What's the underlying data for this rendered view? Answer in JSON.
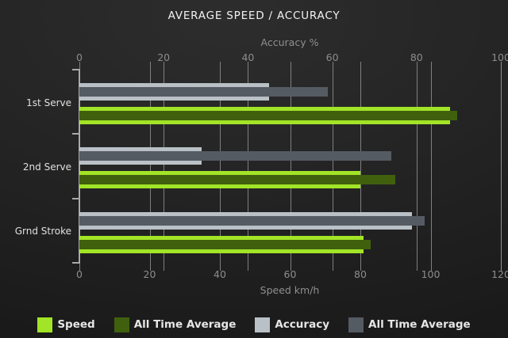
{
  "title": "AVERAGE SPEED / ACCURACY",
  "chart_data": {
    "type": "bar",
    "orientation": "horizontal",
    "grid": true,
    "legend_position": "bottom",
    "categories": [
      "1st Serve",
      "2nd Serve",
      "Grnd Stroke"
    ],
    "series": [
      {
        "name": "Speed",
        "axis": "bottom",
        "role": "main",
        "color": "#a2e427",
        "values": [
          105.5,
          80,
          81
        ]
      },
      {
        "name": "All Time Average",
        "axis": "bottom",
        "role": "overlay",
        "color": "#40600e",
        "values": [
          107.5,
          90,
          83
        ]
      },
      {
        "name": "Accuracy",
        "axis": "top",
        "role": "main",
        "color": "#b9c1c7",
        "values": [
          45,
          29,
          79
        ]
      },
      {
        "name": "All Time Average",
        "axis": "top",
        "role": "overlay",
        "color": "#555b63",
        "values": [
          59,
          74,
          82
        ]
      }
    ],
    "top_axis": {
      "label": "Accuracy %",
      "range": [
        0,
        100
      ],
      "ticks": [
        0,
        20,
        40,
        60,
        80,
        100
      ]
    },
    "bottom_axis": {
      "label": "Speed km/h",
      "range": [
        0,
        120
      ],
      "ticks": [
        0,
        20,
        40,
        60,
        80,
        100,
        120
      ]
    },
    "legend": [
      {
        "label": "Speed",
        "color": "#a2e427"
      },
      {
        "label": "All Time Average",
        "color": "#40600e"
      },
      {
        "label": "Accuracy",
        "color": "#b9c1c7"
      },
      {
        "label": "All Time Average",
        "color": "#555b63"
      }
    ]
  }
}
